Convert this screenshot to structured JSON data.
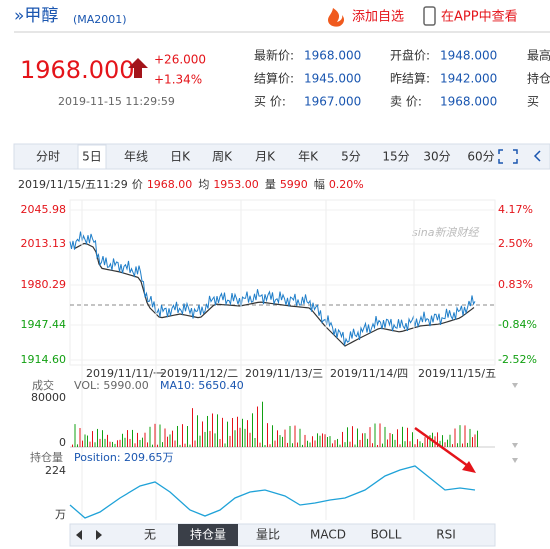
{
  "header": {
    "title": "»甲醇",
    "code": "(MA2001)",
    "add_watchlist": "添加自选",
    "open_app": "在APP中查看"
  },
  "quote": {
    "price": "1968.000",
    "change": "+26.000",
    "change_percent": "+1.34%",
    "time": "2019-11-15 11:29:59",
    "table": [
      [
        [
          "最新价:",
          "1968.000"
        ],
        [
          "开盘价:",
          "1948.000"
        ],
        [
          "最高",
          ""
        ]
      ],
      [
        [
          "结算价:",
          "1945.000"
        ],
        [
          "昨结算:",
          "1942.000"
        ],
        [
          "持仓",
          ""
        ]
      ],
      [
        [
          "买  价:",
          "1967.000"
        ],
        [
          "卖  价:",
          "1968.000"
        ],
        [
          "买",
          ""
        ]
      ]
    ]
  },
  "tabs": {
    "items": [
      "分时",
      "5日",
      "年线",
      "日K",
      "周K",
      "月K",
      "年K",
      "5分",
      "15分",
      "30分",
      "60分"
    ],
    "selected": 1
  },
  "info": [
    [
      "2019/11/15/五11:29",
      ""
    ],
    [
      "价",
      "1968.00"
    ],
    [
      "均",
      "1953.00"
    ],
    [
      "量",
      "5990"
    ],
    [
      "幅",
      "0.20%"
    ]
  ],
  "chart": {
    "watermark": "sina新浪财经",
    "left_labels": [
      "2045.98",
      "2013.13",
      "1980.29",
      "1947.44",
      "1914.60"
    ],
    "right_labels": [
      "4.17%",
      "2.50%",
      "0.83%",
      "-0.84%",
      "-2.52%"
    ],
    "x_labels": [
      "2019/11/11/一",
      "2019/11/12/二",
      "2019/11/13/三",
      "2019/11/14/四",
      "2019/11/15/五"
    ]
  },
  "volume": {
    "title": "成交",
    "vol": "VOL: 5990.00",
    "ma10": "MA10: 5650.40",
    "max_label": "80000",
    "min_label": "0"
  },
  "position": {
    "title": "持仓量",
    "value": "Position: 209.65万",
    "max_label": "224",
    "unit": "万"
  },
  "bottom_tabs": {
    "items": [
      "无",
      "持仓量",
      "量比",
      "MACD",
      "BOLL",
      "RSI"
    ],
    "selected": 1
  }
}
